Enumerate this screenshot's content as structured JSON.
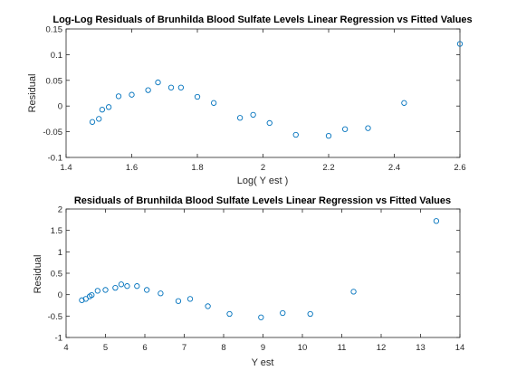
{
  "chart_data": [
    {
      "type": "scatter",
      "title": "Log-Log Residuals of Brunhilda Blood Sulfate Levels Linear Regression vs Fitted Values",
      "xlabel": "Log( Y est )",
      "ylabel": "Residual",
      "xlim": [
        1.4,
        2.6
      ],
      "ylim": [
        -0.1,
        0.15
      ],
      "xticks": [
        "1.4",
        "1.6",
        "1.8",
        "2",
        "2.2",
        "2.4",
        "2.6"
      ],
      "yticks": [
        "-0.1",
        "-0.05",
        "0",
        "0.05",
        "0.1",
        "0.15"
      ],
      "grid": false,
      "marker_color": "#0072bd",
      "series": [
        {
          "x": [
            1.48,
            1.5,
            1.51,
            1.53,
            1.56,
            1.6,
            1.65,
            1.68,
            1.72,
            1.75,
            1.8,
            1.85,
            1.93,
            1.97,
            2.02,
            2.1,
            2.2,
            2.25,
            2.32,
            2.43,
            2.6
          ],
          "y": [
            -0.031,
            -0.025,
            -0.007,
            -0.002,
            0.019,
            0.022,
            0.031,
            0.046,
            0.036,
            0.036,
            0.018,
            0.006,
            -0.023,
            -0.017,
            -0.033,
            -0.056,
            -0.058,
            -0.045,
            -0.043,
            0.006,
            0.121
          ]
        }
      ]
    },
    {
      "type": "scatter",
      "title": "Residuals of Brunhilda Blood Sulfate Levels Linear Regression vs Fitted Values",
      "xlabel": "Y est",
      "ylabel": "Residual",
      "xlim": [
        4,
        14
      ],
      "ylim": [
        -1,
        2
      ],
      "xticks": [
        "4",
        "5",
        "6",
        "7",
        "8",
        "9",
        "10",
        "11",
        "12",
        "13",
        "14"
      ],
      "yticks": [
        "-1",
        "-0.5",
        "0",
        "0.5",
        "1",
        "1.5",
        "2"
      ],
      "grid": false,
      "marker_color": "#0072bd",
      "series": [
        {
          "x": [
            4.4,
            4.5,
            4.6,
            4.65,
            4.8,
            5.0,
            5.25,
            5.4,
            5.55,
            5.8,
            6.05,
            6.4,
            6.85,
            7.15,
            7.6,
            8.15,
            8.95,
            9.5,
            10.2,
            11.3,
            13.4
          ],
          "y": [
            -0.13,
            -0.1,
            -0.04,
            -0.01,
            0.09,
            0.11,
            0.16,
            0.24,
            0.2,
            0.2,
            0.11,
            0.03,
            -0.15,
            -0.1,
            -0.27,
            -0.45,
            -0.53,
            -0.43,
            -0.45,
            0.07,
            1.72
          ]
        }
      ]
    }
  ]
}
